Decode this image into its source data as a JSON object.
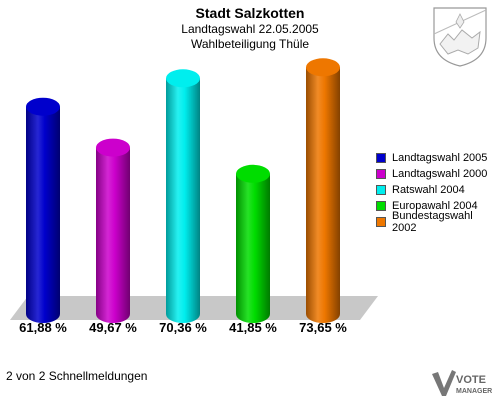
{
  "title": "Stadt Salzkotten",
  "subtitle_1": "Landtagswahl 22.05.2005",
  "subtitle_2": "Wahlbeteiligung Thüle",
  "footer": "2 von 2 Schnellmeldungen",
  "logo": {
    "line1": "VOTE",
    "line2": "MANAGER"
  },
  "chart_data": {
    "type": "bar",
    "categories": [
      "Landtagswahl 2005",
      "Landtagswahl 2000",
      "Ratswahl 2004",
      "Europawahl 2004",
      "Bundestagswahl 2002"
    ],
    "values": [
      61.88,
      49.67,
      70.36,
      41.85,
      73.65
    ],
    "value_labels": [
      "61,88 %",
      "49,67 %",
      "70,36 %",
      "41,85 %",
      "73,65 %"
    ],
    "colors": [
      "#0000cc",
      "#cc00cc",
      "#00eeee",
      "#00dd00",
      "#ee7700"
    ],
    "legend_position": "right",
    "ylim": [
      0,
      80
    ],
    "grid": false
  }
}
